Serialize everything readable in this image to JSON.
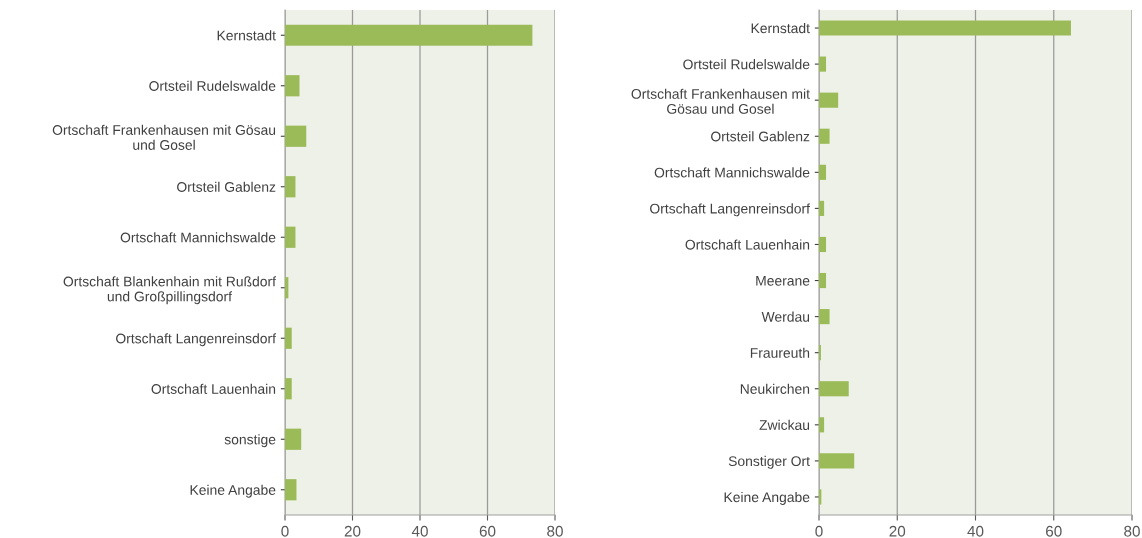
{
  "chart_data": [
    {
      "type": "bar",
      "orientation": "horizontal",
      "color": "#9bbb59",
      "grid": "x",
      "categories": [
        "Kernstadt",
        "Ortsteil Rudelswalde",
        "Ortschaft Frankenhausen mit Gösau\nund Gosel",
        "Ortsteil Gablenz",
        "Ortschaft Mannichswalde",
        "Ortschaft Blankenhain mit Rußdorf\nund Großpillingsdorf",
        "Ortschaft Langenreinsdorf",
        "Ortschaft Lauenhain",
        "sonstige",
        "Keine Angabe"
      ],
      "values": [
        73.3,
        4.3,
        6.3,
        3.1,
        3.1,
        1.0,
        2.0,
        2.0,
        4.8,
        3.4
      ],
      "xlim": [
        0,
        80
      ],
      "xticks": [
        0,
        20,
        40,
        60,
        80
      ]
    },
    {
      "type": "bar",
      "orientation": "horizontal",
      "color": "#9bbb59",
      "grid": "x",
      "categories": [
        "Kernstadt",
        "Ortsteil Rudelswalde",
        "Ortschaft Frankenhausen mit\nGösau und Gosel",
        "Ortsteil Gablenz",
        "Ortschaft Mannichswalde",
        "Ortschaft Langenreinsdorf",
        "Ortschaft Lauenhain",
        "Meerane",
        "Werdau",
        "Fraureuth",
        "Neukirchen",
        "Zwickau",
        "Sonstiger Ort",
        "Keine Angabe"
      ],
      "values": [
        64.4,
        1.8,
        4.9,
        2.7,
        1.8,
        1.3,
        1.8,
        1.8,
        2.7,
        0.5,
        7.6,
        1.3,
        9.0,
        0.6
      ],
      "xlim": [
        0,
        80
      ],
      "xticks": [
        0,
        20,
        40,
        60,
        80
      ]
    }
  ]
}
